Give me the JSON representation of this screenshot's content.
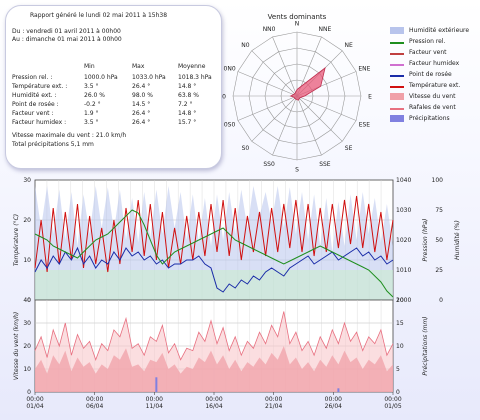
{
  "report": {
    "title": "Rapport généré le lundi 02 mai 2011 à 15h38",
    "from": "Du : vendredi 01 avril 2011 à 00h00",
    "to": "Au : dimanche 01 mai 2011 à 00h00",
    "col_min": "Min",
    "col_max": "Max",
    "col_avg": "Moyenne",
    "rows": [
      {
        "label": "Pression rel. :",
        "min": "1000.0 hPa",
        "max": "1033.0 hPa",
        "avg": "1018.3 hPa"
      },
      {
        "label": "Température ext. :",
        "min": "3.5 °",
        "max": "26.4 °",
        "avg": "14.8 °"
      },
      {
        "label": "Humidité ext. :",
        "min": "26.0 %",
        "max": "98.0 %",
        "avg": "63.8 %"
      },
      {
        "label": "Point de rosée :",
        "min": "-0.2 °",
        "max": "14.5 °",
        "avg": "7.2 °"
      },
      {
        "label": "Facteur vent :",
        "min": "1.9 °",
        "max": "26.4 °",
        "avg": "14.8 °"
      },
      {
        "label": "Facteur humidex :",
        "min": "3.5 °",
        "max": "26.4 °",
        "avg": "15.7 °"
      }
    ],
    "wind_max": "Vitesse maximale du vent : 21.0 km/h",
    "precip_total": "Total précipitations 5,1 mm"
  },
  "rose": {
    "title": "Vents dominants",
    "directions": [
      "N",
      "NNE",
      "NE",
      "ENE",
      "E",
      "ESE",
      "SE",
      "SSE",
      "S",
      "SS0",
      "S0",
      "0S0",
      "0",
      "0N0",
      "N0",
      "NN0"
    ],
    "values": [
      0.1,
      0.16,
      0.62,
      0.4,
      0.12,
      0.06,
      0.05,
      0.07,
      0.06,
      0.05,
      0.05,
      0.05,
      0.1,
      0.06,
      0.05,
      0.06
    ],
    "color": "#e85a7a"
  },
  "legend": [
    {
      "label": "Humidité extérieure",
      "color": "#b8c4ec",
      "kind": "fill"
    },
    {
      "label": "Pression rel.",
      "color": "#1f8f1f",
      "kind": "line"
    },
    {
      "label": "Facteur vent",
      "color": "#c04040",
      "kind": "line"
    },
    {
      "label": "Facteur humidex",
      "color": "#d070d0",
      "kind": "line"
    },
    {
      "label": "Point de rosée",
      "color": "#1a2ca8",
      "kind": "line"
    },
    {
      "label": "Température ext.",
      "color": "#d01010",
      "kind": "line"
    },
    {
      "label": "Vitesse du vent",
      "color": "#f0a0a8",
      "kind": "fill"
    },
    {
      "label": "Rafales de vent",
      "color": "#e87080",
      "kind": "line"
    },
    {
      "label": "Précipitations",
      "color": "#8080e0",
      "kind": "fill"
    }
  ],
  "chart_data": [
    {
      "type": "line",
      "x_ticks": [
        "00:00\n01/04",
        "00:00\n06/04",
        "00:00\n11/04",
        "00:00\n16/04",
        "00:00\n21/04",
        "00:00\n26/04",
        "00:00\n01/05"
      ],
      "ylabel_left": "Température (°C)",
      "ylabel_right1": "Pression (hPa)",
      "ylabel_right2": "Humidité (%)",
      "ylim_left": [
        0,
        30
      ],
      "ylim_right1": [
        1000,
        1040
      ],
      "ylim_right2": [
        0,
        100
      ],
      "yticks_left": [
        "0",
        "10",
        "20",
        "30"
      ],
      "yticks_right1": [
        "1000",
        "1010",
        "1020",
        "1030",
        "1040"
      ],
      "yticks_right2": [
        "0",
        "25",
        "50",
        "75",
        "100"
      ],
      "series": [
        {
          "name": "Humidité extérieure",
          "axis": "humidity",
          "color": "#b8c4ec",
          "values": [
            95,
            60,
            95,
            55,
            92,
            50,
            90,
            45,
            88,
            55,
            95,
            60,
            94,
            58,
            92,
            50,
            85,
            48,
            90,
            52,
            92,
            55,
            95,
            60,
            90,
            50,
            88,
            48,
            85,
            45,
            88,
            50,
            90,
            55,
            92,
            60,
            95,
            70,
            90,
            65,
            95,
            60,
            94,
            55,
            90,
            50,
            88,
            45,
            85,
            40,
            82,
            45,
            88,
            50,
            90,
            55,
            85,
            48,
            80,
            45
          ]
        },
        {
          "name": "Température ext.",
          "axis": "temp",
          "color": "#d01010",
          "values": [
            8,
            20,
            7,
            23,
            9,
            22,
            10,
            24,
            8,
            21,
            9,
            18,
            7,
            20,
            9,
            23,
            12,
            25,
            11,
            24,
            10,
            22,
            8,
            18,
            9,
            21,
            10,
            22,
            11,
            24,
            12,
            25,
            11,
            23,
            10,
            21,
            12,
            22,
            11,
            23,
            12,
            24,
            13,
            25,
            12,
            24,
            11,
            23,
            12,
            24,
            13,
            25,
            14,
            26,
            13,
            24,
            12,
            22,
            10,
            20
          ]
        },
        {
          "name": "Point de rosée",
          "axis": "temp",
          "color": "#1a2ca8",
          "values": [
            7,
            10,
            8,
            11,
            9,
            12,
            10,
            13,
            9,
            11,
            8,
            10,
            9,
            12,
            10,
            13,
            11,
            12,
            10,
            11,
            9,
            10,
            8,
            9,
            9,
            10,
            10,
            11,
            9,
            8,
            3,
            2,
            4,
            3,
            5,
            4,
            6,
            5,
            7,
            8,
            7,
            6,
            8,
            9,
            10,
            11,
            9,
            10,
            11,
            12,
            10,
            11,
            12,
            13,
            11,
            12,
            10,
            11,
            9,
            10
          ]
        },
        {
          "name": "Pression rel.",
          "axis": "pressure",
          "color": "#1f8f1f",
          "values": [
            1022,
            1021,
            1020,
            1018,
            1017,
            1016,
            1015,
            1014,
            1016,
            1018,
            1020,
            1021,
            1022,
            1024,
            1026,
            1028,
            1030,
            1029,
            1025,
            1020,
            1015,
            1012,
            1014,
            1016,
            1017,
            1018,
            1019,
            1020,
            1021,
            1022,
            1023,
            1024,
            1022,
            1020,
            1019,
            1018,
            1017,
            1016,
            1015,
            1014,
            1013,
            1012,
            1013,
            1014,
            1015,
            1016,
            1017,
            1018,
            1017,
            1016,
            1015,
            1014,
            1013,
            1012,
            1011,
            1010,
            1008,
            1006,
            1003,
            1001
          ]
        }
      ]
    },
    {
      "type": "area",
      "ylabel_left": "Vitesse du vent (km/h)",
      "ylabel_right": "Précipitations (mm)",
      "ylim_left": [
        0,
        40
      ],
      "ylim_right": [
        0,
        20
      ],
      "yticks_left": [
        "0",
        "10",
        "20",
        "30",
        "40"
      ],
      "yticks_right": [
        "0",
        "5",
        "10",
        "15",
        "20"
      ],
      "series": [
        {
          "name": "Vitesse du vent",
          "axis": "wind",
          "color": "#f0a0a8",
          "values": [
            10,
            14,
            8,
            16,
            12,
            18,
            9,
            15,
            11,
            13,
            8,
            12,
            10,
            16,
            14,
            19,
            11,
            12,
            9,
            14,
            13,
            17,
            10,
            12,
            8,
            11,
            10,
            15,
            13,
            18,
            12,
            16,
            10,
            14,
            9,
            13,
            11,
            15,
            12,
            17,
            14,
            20,
            12,
            15,
            10,
            13,
            9,
            14,
            11,
            16,
            12,
            18,
            13,
            15,
            10,
            14,
            12,
            16,
            9,
            12
          ]
        },
        {
          "name": "Rafales de vent",
          "axis": "wind",
          "color": "#e87080",
          "values": [
            18,
            24,
            15,
            27,
            20,
            30,
            16,
            25,
            19,
            22,
            14,
            21,
            18,
            27,
            24,
            32,
            19,
            21,
            16,
            24,
            22,
            29,
            17,
            21,
            14,
            19,
            18,
            26,
            22,
            31,
            21,
            28,
            18,
            24,
            16,
            22,
            19,
            26,
            21,
            29,
            24,
            35,
            21,
            26,
            18,
            22,
            16,
            24,
            19,
            27,
            21,
            30,
            22,
            26,
            18,
            24,
            21,
            27,
            16,
            21
          ]
        },
        {
          "name": "Précipitations",
          "axis": "precip",
          "color": "#8080e0",
          "values": [
            0,
            0,
            0,
            0,
            0,
            0,
            0,
            0,
            0,
            0,
            0,
            0,
            0,
            0,
            0,
            0,
            0,
            0,
            0,
            0,
            3.2,
            0,
            0,
            0,
            0,
            0,
            0,
            0,
            0,
            0,
            0,
            0,
            0,
            0,
            0,
            0,
            0,
            0,
            0,
            0,
            0,
            0,
            0,
            0,
            0,
            0,
            0,
            0,
            0,
            0,
            0.8,
            0,
            0,
            0,
            0,
            0,
            0,
            0,
            0,
            0
          ]
        }
      ]
    }
  ]
}
